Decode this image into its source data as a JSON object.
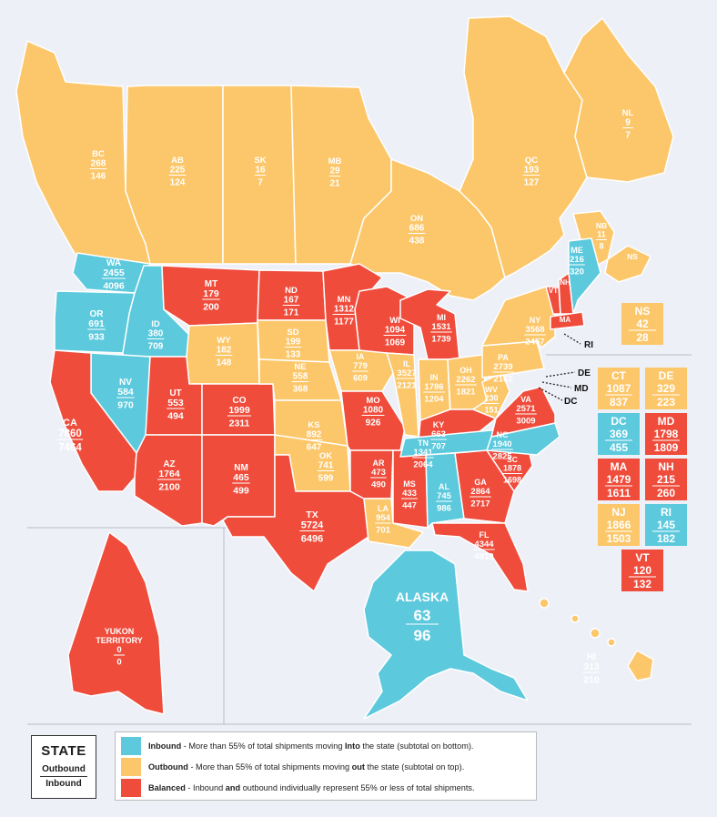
{
  "colors": {
    "inbound": "#5cc9dd",
    "outbound": "#fcc76a",
    "balanced": "#ef4c3c",
    "background": "#eef0f8"
  },
  "regions": [
    {
      "code": "BC",
      "out": "268",
      "in": "146",
      "type": "outbound"
    },
    {
      "code": "AB",
      "out": "225",
      "in": "124",
      "type": "outbound"
    },
    {
      "code": "SK",
      "out": "16",
      "in": "7",
      "type": "outbound"
    },
    {
      "code": "MB",
      "out": "29",
      "in": "21",
      "type": "outbound"
    },
    {
      "code": "ON",
      "out": "686",
      "in": "438",
      "type": "outbound"
    },
    {
      "code": "QC",
      "out": "193",
      "in": "127",
      "type": "outbound"
    },
    {
      "code": "NL",
      "out": "9",
      "in": "7",
      "type": "outbound"
    },
    {
      "code": "NB",
      "out": "11",
      "in": "8",
      "type": "outbound"
    },
    {
      "code": "NS",
      "out": "",
      "in": "",
      "type": "outbound"
    },
    {
      "code": "WA",
      "out": "2455",
      "in": "4096",
      "type": "inbound"
    },
    {
      "code": "OR",
      "out": "691",
      "in": "933",
      "type": "inbound"
    },
    {
      "code": "ID",
      "out": "380",
      "in": "709",
      "type": "inbound"
    },
    {
      "code": "MT",
      "out": "179",
      "in": "200",
      "type": "balanced"
    },
    {
      "code": "WY",
      "out": "182",
      "in": "148",
      "type": "outbound"
    },
    {
      "code": "NV",
      "out": "584",
      "in": "970",
      "type": "inbound"
    },
    {
      "code": "UT",
      "out": "553",
      "in": "494",
      "type": "balanced"
    },
    {
      "code": "CA",
      "out": "7860",
      "in": "7464",
      "type": "balanced"
    },
    {
      "code": "AZ",
      "out": "1764",
      "in": "2100",
      "type": "balanced"
    },
    {
      "code": "CO",
      "out": "1999",
      "in": "2311",
      "type": "balanced"
    },
    {
      "code": "NM",
      "out": "465",
      "in": "499",
      "type": "balanced"
    },
    {
      "code": "ND",
      "out": "167",
      "in": "171",
      "type": "balanced"
    },
    {
      "code": "SD",
      "out": "199",
      "in": "133",
      "type": "outbound"
    },
    {
      "code": "NE",
      "out": "558",
      "in": "368",
      "type": "outbound"
    },
    {
      "code": "KS",
      "out": "892",
      "in": "647",
      "type": "outbound"
    },
    {
      "code": "OK",
      "out": "741",
      "in": "599",
      "type": "outbound"
    },
    {
      "code": "TX",
      "out": "5724",
      "in": "6496",
      "type": "balanced"
    },
    {
      "code": "MN",
      "out": "1312",
      "in": "1177",
      "type": "balanced"
    },
    {
      "code": "IA",
      "out": "779",
      "in": "609",
      "type": "outbound"
    },
    {
      "code": "MO",
      "out": "1080",
      "in": "926",
      "type": "balanced"
    },
    {
      "code": "AR",
      "out": "473",
      "in": "490",
      "type": "balanced"
    },
    {
      "code": "LA",
      "out": "954",
      "in": "701",
      "type": "outbound"
    },
    {
      "code": "WI",
      "out": "1094",
      "in": "1069",
      "type": "balanced"
    },
    {
      "code": "IL",
      "out": "3527",
      "in": "2121",
      "type": "outbound"
    },
    {
      "code": "MS",
      "out": "433",
      "in": "447",
      "type": "balanced"
    },
    {
      "code": "MI",
      "out": "1531",
      "in": "1739",
      "type": "balanced"
    },
    {
      "code": "IN",
      "out": "1786",
      "in": "1204",
      "type": "outbound"
    },
    {
      "code": "OH",
      "out": "2262",
      "in": "1821",
      "type": "outbound"
    },
    {
      "code": "KY",
      "out": "663",
      "in": "707",
      "type": "balanced"
    },
    {
      "code": "TN",
      "out": "1341",
      "in": "2064",
      "type": "inbound"
    },
    {
      "code": "AL",
      "out": "745",
      "in": "986",
      "type": "inbound"
    },
    {
      "code": "GA",
      "out": "2864",
      "in": "2717",
      "type": "balanced"
    },
    {
      "code": "FL",
      "out": "4344",
      "in": "4919",
      "type": "balanced"
    },
    {
      "code": "SC",
      "out": "1878",
      "in": "1698",
      "type": "balanced"
    },
    {
      "code": "NC",
      "out": "1940",
      "in": "2825",
      "type": "inbound"
    },
    {
      "code": "VA",
      "out": "2571",
      "in": "3009",
      "type": "balanced"
    },
    {
      "code": "WV",
      "out": "230",
      "in": "151",
      "type": "outbound"
    },
    {
      "code": "PA",
      "out": "2739",
      "in": "2162",
      "type": "outbound"
    },
    {
      "code": "NY",
      "out": "3568",
      "in": "2457",
      "type": "outbound"
    },
    {
      "code": "VT",
      "out": "",
      "in": "",
      "type": "balanced"
    },
    {
      "code": "NH",
      "out": "",
      "in": "",
      "type": "balanced"
    },
    {
      "code": "ME",
      "out": "216",
      "in": "320",
      "type": "inbound"
    },
    {
      "code": "MA",
      "out": "",
      "in": "",
      "type": "balanced"
    },
    {
      "code": "ALASKA",
      "out": "63",
      "in": "96",
      "type": "inbound"
    },
    {
      "code": "YUKON TERRITORY",
      "out": "0",
      "in": "0",
      "type": "balanced"
    },
    {
      "code": "HI",
      "out": "313",
      "in": "210",
      "type": "outbound"
    }
  ],
  "small_states": [
    {
      "code": "NS",
      "out": "42",
      "in": "28",
      "type": "outbound"
    },
    {
      "code": "CT",
      "out": "1087",
      "in": "837",
      "type": "outbound"
    },
    {
      "code": "DE",
      "out": "329",
      "in": "223",
      "type": "outbound"
    },
    {
      "code": "DC",
      "out": "369",
      "in": "455",
      "type": "inbound"
    },
    {
      "code": "MD",
      "out": "1798",
      "in": "1809",
      "type": "balanced"
    },
    {
      "code": "MA",
      "out": "1479",
      "in": "1611",
      "type": "balanced"
    },
    {
      "code": "NH",
      "out": "215",
      "in": "260",
      "type": "balanced"
    },
    {
      "code": "NJ",
      "out": "1866",
      "in": "1503",
      "type": "outbound"
    },
    {
      "code": "RI",
      "out": "145",
      "in": "182",
      "type": "inbound"
    },
    {
      "code": "VT",
      "out": "120",
      "in": "132",
      "type": "balanced"
    }
  ],
  "pointer_labels": [
    "RI",
    "DE",
    "MD",
    "DC"
  ],
  "legend": {
    "key_title": "STATE",
    "key_outbound": "Outbound",
    "key_inbound": "Inbound",
    "inbound_bold": "Inbound",
    "inbound_text": " - More than 55% of total shipments moving ",
    "inbound_into": "Into",
    "inbound_rest": " the state (subtotal on bottom).",
    "outbound_bold": "Outbound",
    "outbound_text": " - More than 55% of total shipments moving ",
    "outbound_out": "out",
    "outbound_rest": " the state (subtotal on top).",
    "balanced_bold": "Balanced",
    "balanced_text": " - Inbound ",
    "balanced_and": "and",
    "balanced_rest": " outbound individually represent 55% or less of total shipments."
  }
}
